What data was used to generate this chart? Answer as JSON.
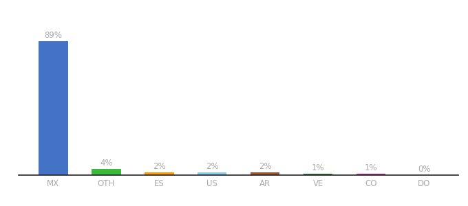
{
  "categories": [
    "MX",
    "OTH",
    "ES",
    "US",
    "AR",
    "VE",
    "CO",
    "DO"
  ],
  "values": [
    89,
    4,
    2,
    2,
    2,
    1,
    1,
    0
  ],
  "labels": [
    "89%",
    "4%",
    "2%",
    "2%",
    "2%",
    "1%",
    "1%",
    "0%"
  ],
  "bar_colors": [
    "#4472C4",
    "#3CB83C",
    "#FF9800",
    "#87CEEB",
    "#A0522D",
    "#2E7D32",
    "#E91E8C",
    "#9E9E9E"
  ],
  "background_color": "#ffffff",
  "label_color": "#aaaaaa",
  "label_fontsize": 8.5,
  "tick_fontsize": 8.5,
  "tick_color": "#aaaaaa",
  "ylim": [
    0,
    100
  ],
  "bar_width": 0.55
}
